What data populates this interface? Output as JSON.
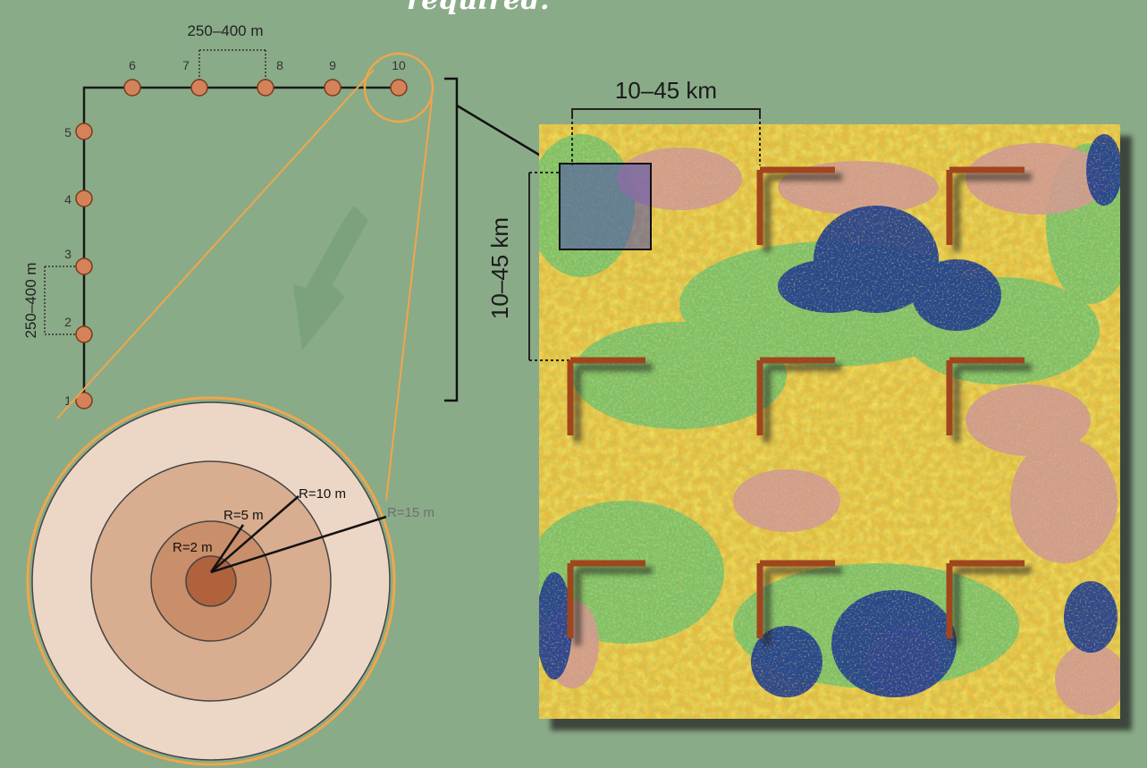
{
  "heading": "required.",
  "transect": {
    "spacing_label_top": "250–400 m",
    "spacing_label_left": "250–400 m",
    "plot_numbers": [
      "1",
      "2",
      "3",
      "4",
      "5",
      "6",
      "7",
      "8",
      "9",
      "10"
    ]
  },
  "plot_detail": {
    "radius_labels": [
      "R=2 m",
      "R=5 m",
      "R=10 m",
      "R=15 m"
    ]
  },
  "landscape": {
    "width_label": "10–45 km",
    "height_label": "10–45 km",
    "cluster_count": 9
  },
  "colors": {
    "background": "#8aab88",
    "plot_marker": "#d4825a",
    "zoom_outline": "#f0a64a",
    "cluster_marker": "#a0461e",
    "ring_outer": "#ecd6c5",
    "ring_3": "#d9ad90",
    "ring_2": "#c98e6a",
    "ring_1": "#b0623c"
  }
}
